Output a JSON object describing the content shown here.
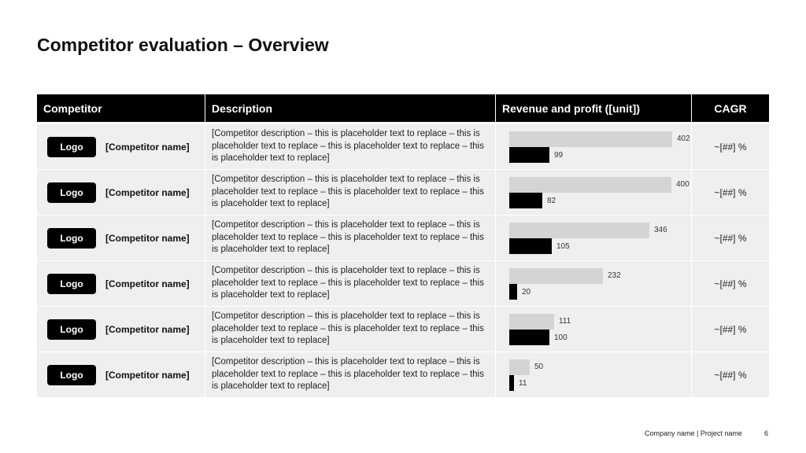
{
  "title": "Competitor evaluation – Overview",
  "table": {
    "headers": {
      "competitor": "Competitor",
      "description": "Description",
      "revenue_profit": "Revenue and profit ([unit])",
      "cagr": "CAGR"
    },
    "rows": [
      {
        "logo": "Logo",
        "name": "[Competitor name]",
        "description": "[Competitor description – this is placeholder text to replace – this is placeholder text to replace – this is placeholder text to replace – this is placeholder text to replace]",
        "cagr": "~[##] %"
      },
      {
        "logo": "Logo",
        "name": "[Competitor name]",
        "description": "[Competitor description – this is placeholder text to replace – this is placeholder text to replace – this is placeholder text to replace – this is placeholder text to replace]",
        "cagr": "~[##] %"
      },
      {
        "logo": "Logo",
        "name": "[Competitor name]",
        "description": "[Competitor description – this is placeholder text to replace – this is placeholder text to replace – this is placeholder text to replace – this is placeholder text to replace]",
        "cagr": "~[##] %"
      },
      {
        "logo": "Logo",
        "name": "[Competitor name]",
        "description": "[Competitor description – this is placeholder text to replace – this is placeholder text to replace – this is placeholder text to replace – this is placeholder text to replace]",
        "cagr": "~[##] %"
      },
      {
        "logo": "Logo",
        "name": "[Competitor name]",
        "description": "[Competitor description – this is placeholder text to replace – this is placeholder text to replace – this is placeholder text to replace – this is placeholder text to replace]",
        "cagr": "~[##] %"
      },
      {
        "logo": "Logo",
        "name": "[Competitor name]",
        "description": "[Competitor description – this is placeholder text to replace – this is placeholder text to replace – this is placeholder text to replace – this is placeholder text to replace]",
        "cagr": "~[##] %"
      }
    ]
  },
  "chart_data": {
    "type": "bar",
    "categories": [
      "[Competitor name]",
      "[Competitor name]",
      "[Competitor name]",
      "[Competitor name]",
      "[Competitor name]",
      "[Competitor name]"
    ],
    "series": [
      {
        "values": [
          402,
          400,
          346,
          232,
          111,
          50
        ]
      },
      {
        "values": [
          99,
          82,
          105,
          20,
          100,
          11
        ]
      }
    ],
    "xlim": [
      0,
      402
    ],
    "colors": [
      "#d4d4d4",
      "#000000"
    ]
  },
  "footer": {
    "company_project": "Company name | Project name",
    "page_number": "6"
  }
}
